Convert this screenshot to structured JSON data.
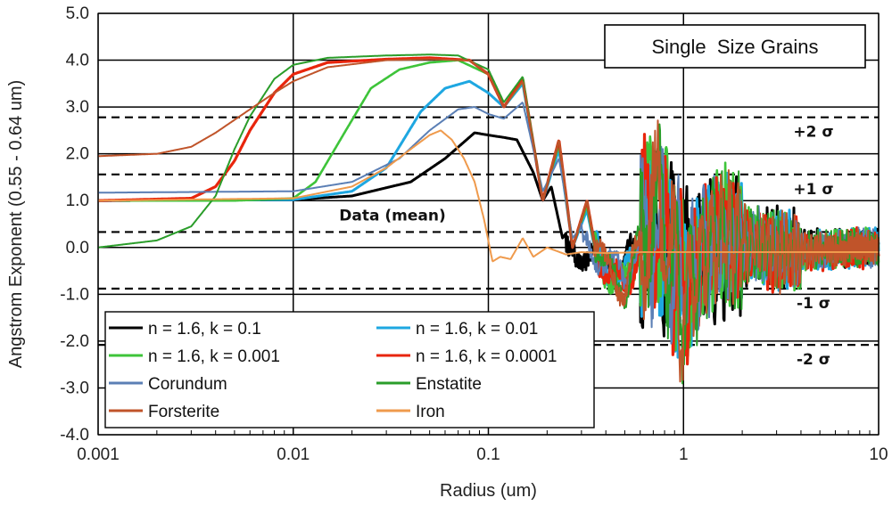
{
  "chart_data": {
    "type": "line",
    "title": "Single  Size Grains",
    "xlabel": "Radius (um)",
    "ylabel": "Angstrom Exponent (0.55 - 0.64 um)",
    "xscale": "log",
    "xlim": [
      0.001,
      10
    ],
    "ylim": [
      -4.0,
      5.0
    ],
    "x_ticks": [
      "0.001",
      "0.01",
      "0.1",
      "1",
      "10"
    ],
    "y_ticks": [
      "5.0",
      "4.0",
      "3.0",
      "2.0",
      "1.0",
      "0.0",
      "-1.0",
      "-2.0",
      "-3.0",
      "-4.0"
    ],
    "grid": true,
    "legend_position": "bottom-left",
    "reference_lines": [
      {
        "label": "+2 σ",
        "y": 2.78
      },
      {
        "label": "+1 σ",
        "y": 1.56
      },
      {
        "label": "Data (mean)",
        "y": 0.33
      },
      {
        "label": "-1 σ",
        "y": -0.88
      },
      {
        "label": "-2 σ",
        "y": -2.08
      }
    ],
    "series": [
      {
        "name": "n = 1.6, k = 0.1",
        "color": "#000000",
        "width": 3.0,
        "osc_end": 0.25,
        "x": [
          0.001,
          0.01,
          0.02,
          0.04,
          0.06,
          0.085,
          0.1,
          0.12,
          0.14,
          0.17,
          0.19,
          0.21,
          0.24,
          0.27,
          0.3,
          0.35,
          0.4,
          0.45,
          0.5,
          0.6,
          0.7,
          0.8,
          1.0,
          1.5,
          3.0,
          10
        ],
        "y": [
          1.0,
          1.02,
          1.1,
          1.4,
          1.9,
          2.45,
          2.4,
          2.35,
          2.3,
          1.6,
          1.0,
          1.3,
          0.2,
          0.5,
          -0.3,
          -0.6,
          -0.9,
          -1.0,
          -0.8,
          -0.2,
          0.35,
          0.1,
          -0.4,
          -0.1,
          0.0,
          0.0
        ]
      },
      {
        "name": "n = 1.6, k = 0.01",
        "color": "#1ea7e1",
        "width": 3.0,
        "osc_end": 0.35,
        "x": [
          0.001,
          0.01,
          0.02,
          0.03,
          0.045,
          0.06,
          0.08,
          0.1,
          0.12,
          0.15,
          0.19,
          0.23,
          0.27,
          0.32,
          0.4,
          0.5,
          0.7,
          1.0,
          1.5,
          3.0,
          10
        ],
        "y": [
          1.0,
          1.02,
          1.2,
          1.7,
          2.9,
          3.4,
          3.55,
          3.3,
          3.0,
          3.5,
          1.0,
          2.1,
          0.0,
          0.8,
          -1.2,
          -2.0,
          2.3,
          -2.6,
          0.9,
          -0.3,
          0.0
        ]
      },
      {
        "name": "n = 1.6, k = 0.001",
        "color": "#3ec43a",
        "width": 2.6,
        "osc_end": 0.35,
        "x": [
          0.001,
          0.005,
          0.01,
          0.013,
          0.018,
          0.025,
          0.035,
          0.05,
          0.07,
          0.1,
          0.12,
          0.15,
          0.19,
          0.23,
          0.27,
          0.32,
          0.4,
          0.5,
          0.7,
          1.0,
          1.5,
          3.0,
          10
        ],
        "y": [
          1.0,
          1.0,
          1.05,
          1.4,
          2.4,
          3.4,
          3.8,
          3.95,
          4.0,
          3.7,
          3.0,
          3.55,
          1.0,
          2.2,
          0.0,
          0.9,
          -1.3,
          -2.4,
          2.7,
          -3.1,
          1.0,
          -0.3,
          0.0
        ]
      },
      {
        "name": "n = 1.6, k = 0.0001",
        "color": "#e8250c",
        "width": 3.2,
        "osc_end": 0.35,
        "x": [
          0.001,
          0.003,
          0.004,
          0.005,
          0.006,
          0.008,
          0.01,
          0.015,
          0.03,
          0.05,
          0.08,
          0.1,
          0.12,
          0.15,
          0.19,
          0.23,
          0.27,
          0.32,
          0.4,
          0.5,
          0.7,
          1.0,
          1.5,
          3.0,
          10
        ],
        "y": [
          1.0,
          1.05,
          1.3,
          1.85,
          2.5,
          3.3,
          3.7,
          3.95,
          4.02,
          4.05,
          4.0,
          3.7,
          3.0,
          3.6,
          1.0,
          2.3,
          0.0,
          1.0,
          -1.3,
          -2.6,
          2.8,
          -3.2,
          1.1,
          -0.3,
          0.0
        ]
      },
      {
        "name": "Corundum",
        "color": "#5b7fb5",
        "width": 2.0,
        "osc_end": 0.3,
        "x": [
          0.001,
          0.01,
          0.02,
          0.035,
          0.05,
          0.07,
          0.085,
          0.1,
          0.12,
          0.15,
          0.19,
          0.23,
          0.27,
          0.32,
          0.4,
          0.5,
          0.7,
          1.0,
          1.5,
          3.0,
          10
        ],
        "y": [
          1.17,
          1.2,
          1.4,
          1.9,
          2.5,
          2.95,
          3.0,
          2.85,
          2.75,
          3.1,
          1.2,
          1.9,
          0.2,
          0.6,
          -1.0,
          -1.7,
          1.3,
          -1.8,
          0.5,
          -0.2,
          0.0
        ]
      },
      {
        "name": "Enstatite",
        "color": "#2a9d2a",
        "width": 2.0,
        "osc_end": 0.35,
        "x": [
          0.001,
          0.002,
          0.003,
          0.004,
          0.005,
          0.006,
          0.008,
          0.01,
          0.015,
          0.03,
          0.05,
          0.07,
          0.1,
          0.12,
          0.15,
          0.19,
          0.23,
          0.27,
          0.32,
          0.4,
          0.5,
          0.7,
          1.0,
          1.5,
          3.0,
          10
        ],
        "y": [
          0.0,
          0.15,
          0.45,
          1.1,
          2.1,
          2.8,
          3.6,
          3.9,
          4.05,
          4.1,
          4.12,
          4.1,
          3.8,
          3.1,
          3.65,
          1.0,
          2.3,
          0.0,
          1.0,
          -1.3,
          -2.6,
          3.0,
          -3.3,
          1.1,
          -0.3,
          0.0
        ]
      },
      {
        "name": "Forsterite",
        "color": "#c0542a",
        "width": 2.0,
        "osc_end": 0.35,
        "x": [
          0.001,
          0.002,
          0.003,
          0.004,
          0.006,
          0.008,
          0.01,
          0.015,
          0.03,
          0.05,
          0.08,
          0.1,
          0.12,
          0.15,
          0.19,
          0.23,
          0.27,
          0.32,
          0.4,
          0.5,
          0.7,
          1.0,
          1.5,
          3.0,
          10
        ],
        "y": [
          1.95,
          2.0,
          2.15,
          2.45,
          2.95,
          3.3,
          3.55,
          3.85,
          4.0,
          4.02,
          4.0,
          3.7,
          3.0,
          3.55,
          1.0,
          2.3,
          0.0,
          1.0,
          -1.3,
          -2.5,
          2.8,
          -3.1,
          1.0,
          -0.3,
          0.0
        ]
      },
      {
        "name": "Iron",
        "color": "#ef9a4c",
        "width": 2.0,
        "osc_end": 10,
        "x": [
          0.001,
          0.01,
          0.02,
          0.03,
          0.04,
          0.05,
          0.057,
          0.065,
          0.075,
          0.085,
          0.095,
          0.105,
          0.115,
          0.13,
          0.15,
          0.17,
          0.2,
          0.25,
          0.3,
          0.4,
          0.6,
          1.0,
          3.0,
          10
        ],
        "y": [
          1.0,
          1.05,
          1.3,
          1.7,
          2.1,
          2.4,
          2.5,
          2.3,
          1.9,
          1.4,
          0.6,
          -0.3,
          -0.2,
          -0.25,
          0.2,
          -0.2,
          0.0,
          -0.15,
          -0.1,
          -0.12,
          -0.1,
          -0.1,
          -0.1,
          -0.1
        ]
      }
    ]
  }
}
